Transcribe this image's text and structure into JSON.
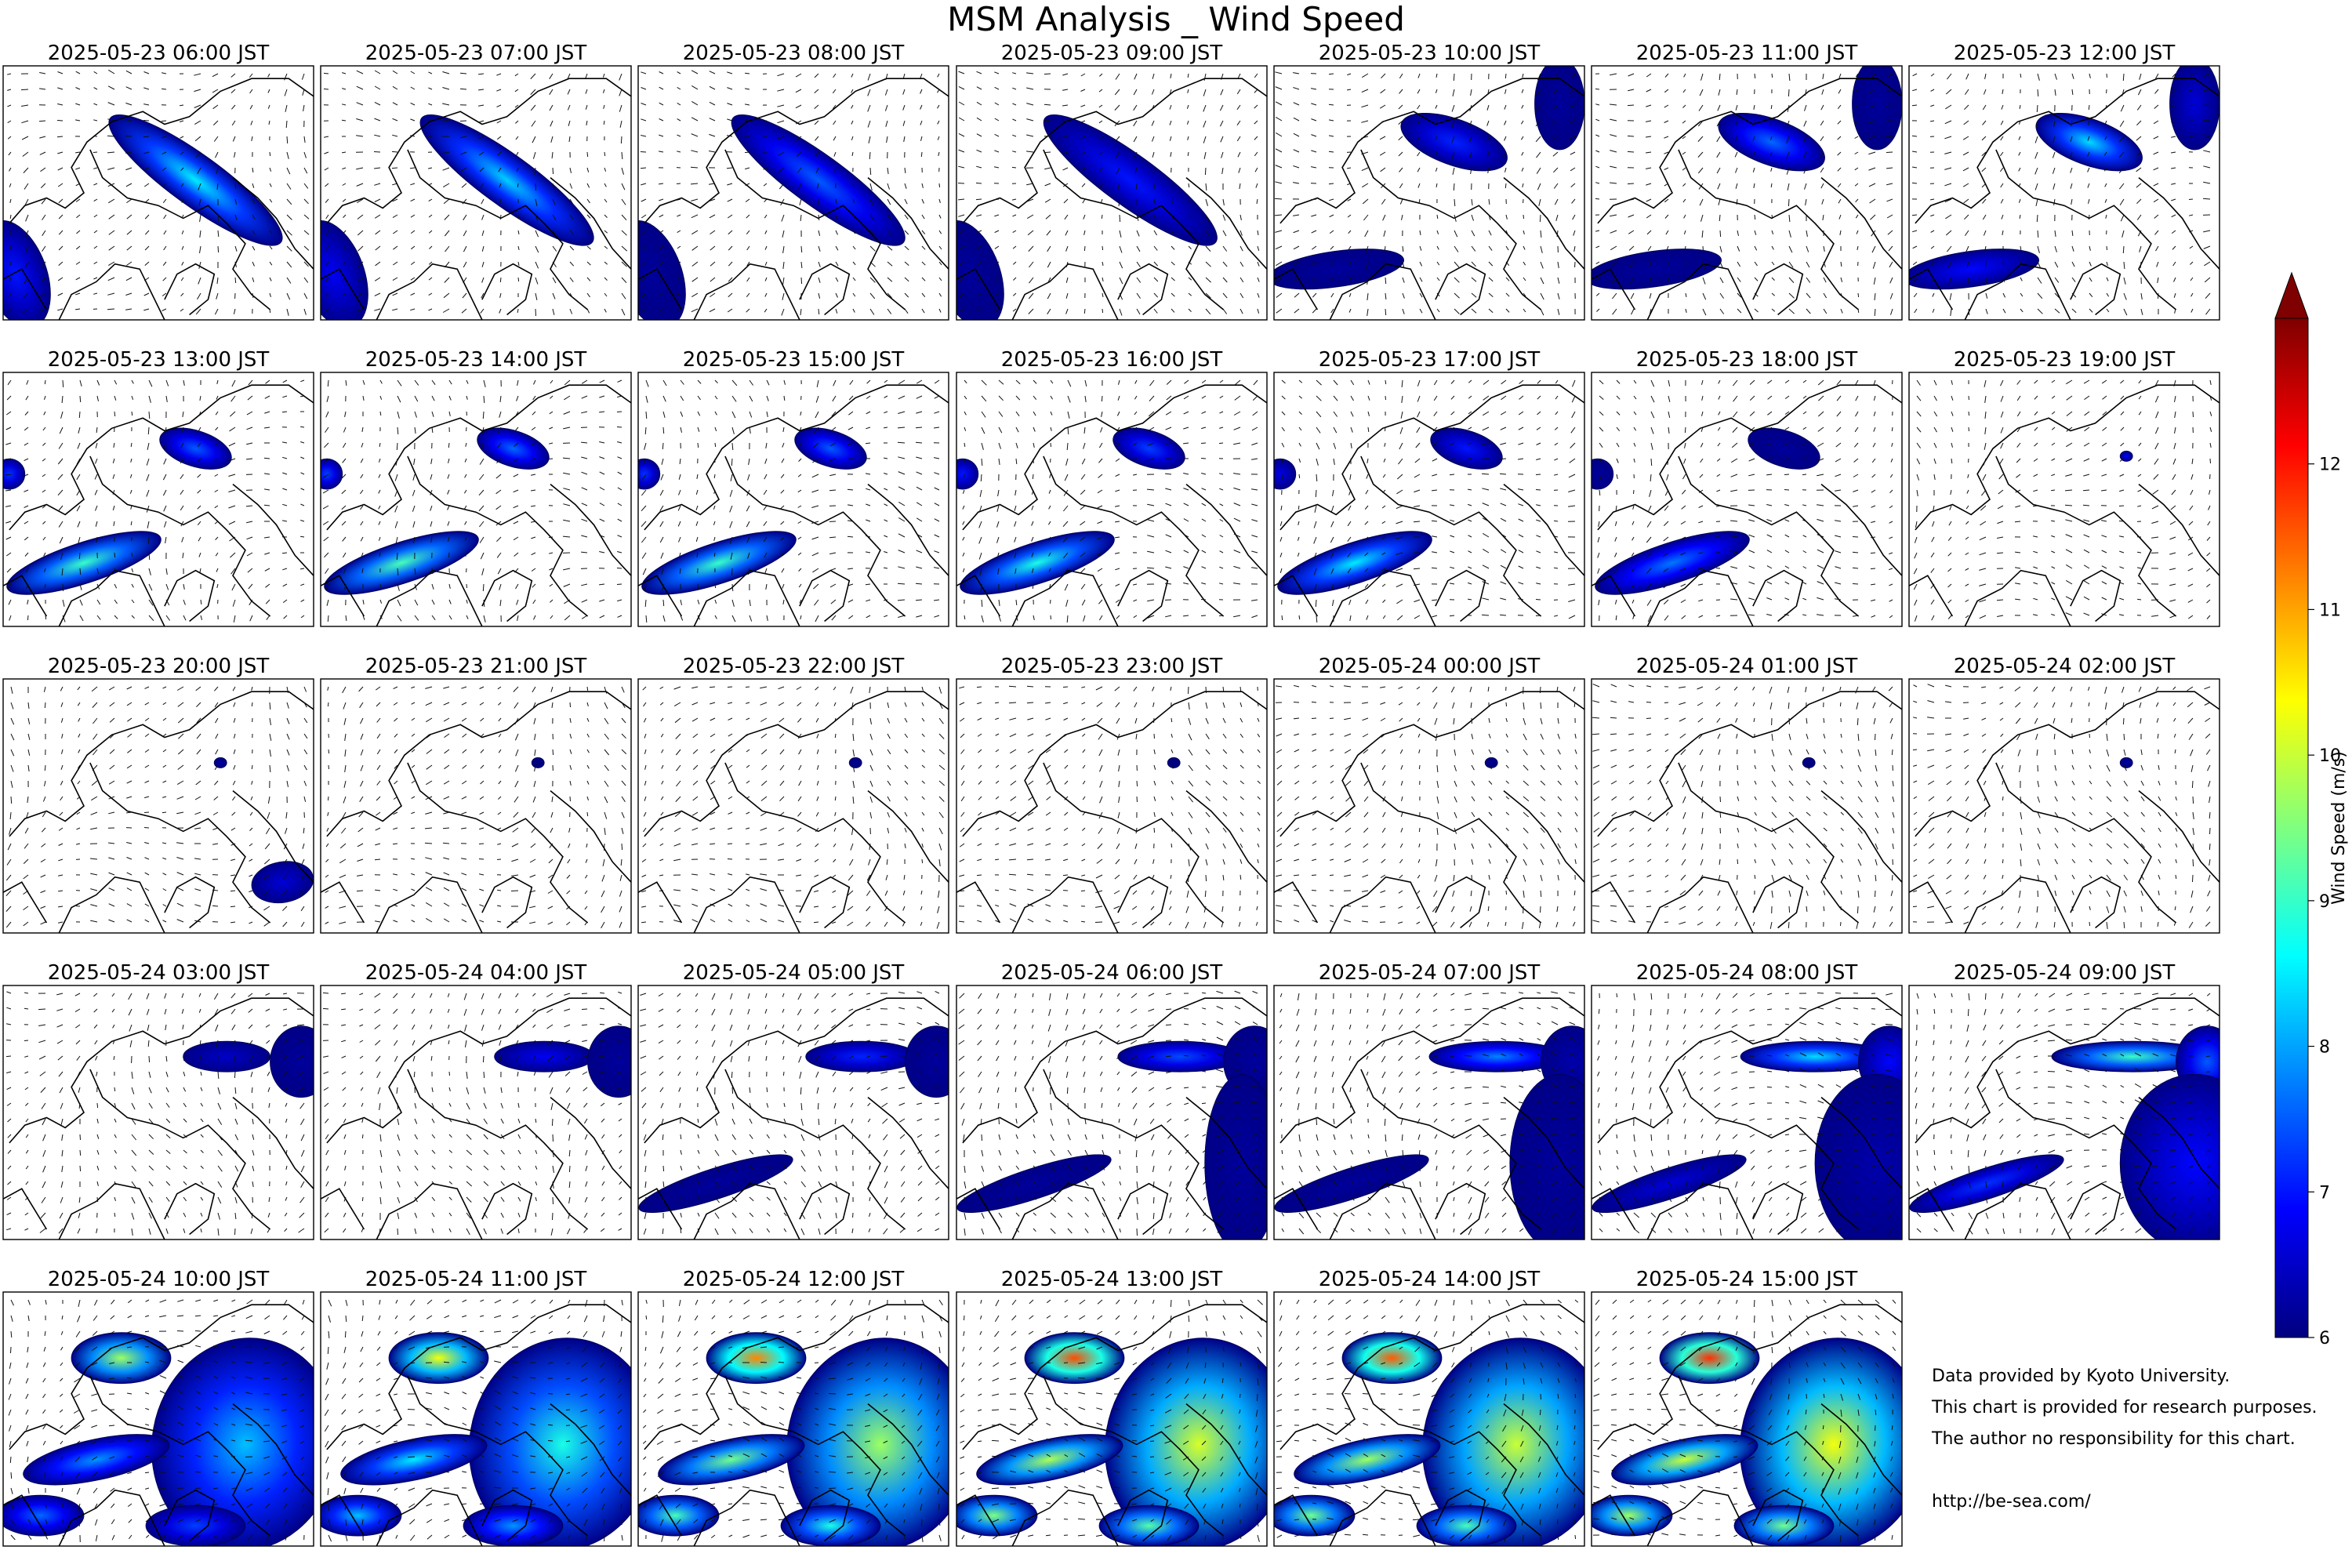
{
  "title": "MSM Analysis _ Wind Speed",
  "credits": {
    "line1": "Data provided by Kyoto University.",
    "line2": "This chart is provided for research purposes.",
    "line3": "The author no responsibility for this chart.",
    "url": "http://be-sea.com/"
  },
  "chart_data": {
    "type": "heatmap",
    "title": "MSM Analysis _ Wind Speed",
    "variable": "Wind Speed (m/s) with wind vectors over coastline map",
    "panels": [
      {
        "time": "2025-05-23 06:00 JST",
        "max_wind_speed": 8.5
      },
      {
        "time": "2025-05-23 07:00 JST",
        "max_wind_speed": 8.3
      },
      {
        "time": "2025-05-23 08:00 JST",
        "max_wind_speed": 7.5
      },
      {
        "time": "2025-05-23 09:00 JST",
        "max_wind_speed": 7.0
      },
      {
        "time": "2025-05-23 10:00 JST",
        "max_wind_speed": 7.1
      },
      {
        "time": "2025-05-23 11:00 JST",
        "max_wind_speed": 7.6
      },
      {
        "time": "2025-05-23 12:00 JST",
        "max_wind_speed": 8.4
      },
      {
        "time": "2025-05-23 13:00 JST",
        "max_wind_speed": 9.0
      },
      {
        "time": "2025-05-23 14:00 JST",
        "max_wind_speed": 9.1
      },
      {
        "time": "2025-05-23 15:00 JST",
        "max_wind_speed": 9.0
      },
      {
        "time": "2025-05-23 16:00 JST",
        "max_wind_speed": 8.8
      },
      {
        "time": "2025-05-23 17:00 JST",
        "max_wind_speed": 8.5
      },
      {
        "time": "2025-05-23 18:00 JST",
        "max_wind_speed": 7.7
      },
      {
        "time": "2025-05-23 19:00 JST",
        "max_wind_speed": 6.8
      },
      {
        "time": "2025-05-23 20:00 JST",
        "max_wind_speed": 6.6
      },
      {
        "time": "2025-05-23 21:00 JST",
        "max_wind_speed": 5.9
      },
      {
        "time": "2025-05-23 22:00 JST",
        "max_wind_speed": 6.1
      },
      {
        "time": "2025-05-23 23:00 JST",
        "max_wind_speed": 5.9
      },
      {
        "time": "2025-05-24 00:00 JST",
        "max_wind_speed": 6.1
      },
      {
        "time": "2025-05-24 01:00 JST",
        "max_wind_speed": 5.9
      },
      {
        "time": "2025-05-24 02:00 JST",
        "max_wind_speed": 6.2
      },
      {
        "time": "2025-05-24 03:00 JST",
        "max_wind_speed": 6.5
      },
      {
        "time": "2025-05-24 04:00 JST",
        "max_wind_speed": 6.8
      },
      {
        "time": "2025-05-24 05:00 JST",
        "max_wind_speed": 7.1
      },
      {
        "time": "2025-05-24 06:00 JST",
        "max_wind_speed": 7.4
      },
      {
        "time": "2025-05-24 07:00 JST",
        "max_wind_speed": 7.8
      },
      {
        "time": "2025-05-24 08:00 JST",
        "max_wind_speed": 8.4
      },
      {
        "time": "2025-05-24 09:00 JST",
        "max_wind_speed": 9.0
      },
      {
        "time": "2025-05-24 10:00 JST",
        "max_wind_speed": 9.7
      },
      {
        "time": "2025-05-24 11:00 JST",
        "max_wind_speed": 10.3
      },
      {
        "time": "2025-05-24 12:00 JST",
        "max_wind_speed": 11.2
      },
      {
        "time": "2025-05-24 13:00 JST",
        "max_wind_speed": 11.6
      },
      {
        "time": "2025-05-24 14:00 JST",
        "max_wind_speed": 11.5
      },
      {
        "time": "2025-05-24 15:00 JST",
        "max_wind_speed": 11.8
      }
    ],
    "colorbar": {
      "label": "Wind Speed (m/s)",
      "min": 6,
      "max": 13,
      "ticks": [
        6,
        7,
        8,
        9,
        10,
        11,
        12
      ],
      "extend": "max",
      "colormap": "jet",
      "colors": [
        "#00007f",
        "#0000ff",
        "#007fff",
        "#00ffff",
        "#7fff7f",
        "#ffff00",
        "#ff7f00",
        "#ff0000",
        "#7f0000"
      ]
    },
    "axes": {
      "ticks": "none",
      "grid": false
    },
    "coastline_color": "#000000"
  }
}
